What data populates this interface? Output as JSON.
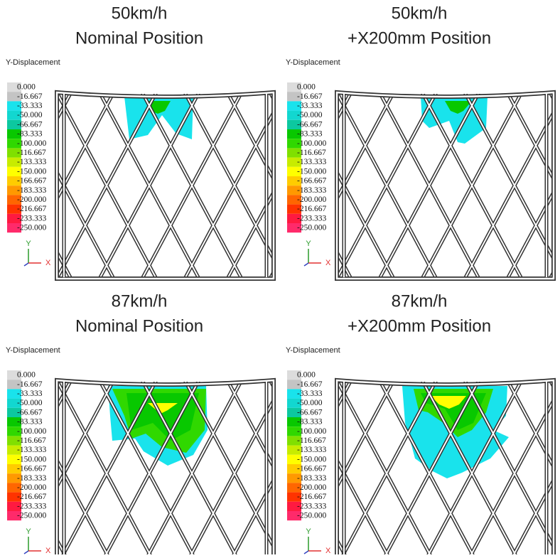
{
  "panels": [
    {
      "title": [
        "50km/h",
        "Nominal Position"
      ],
      "field_label": "Y-Displacement"
    },
    {
      "title": [
        "50km/h",
        "+X200mm Position"
      ],
      "field_label": "Y-Displacement"
    },
    {
      "title": [
        "87km/h",
        "Nominal Position"
      ],
      "field_label": "Y-Displacement"
    },
    {
      "title": [
        "87km/h",
        "+X200mm Position"
      ],
      "field_label": "Y-Displacement"
    }
  ],
  "legend": [
    {
      "label": "0.000",
      "color": "#dcdcdc"
    },
    {
      "label": "-16.667",
      "color": "#c4c4c4"
    },
    {
      "label": "-33.333",
      "color": "#19e3ec"
    },
    {
      "label": "-50.000",
      "color": "#12d7d0"
    },
    {
      "label": "-66.667",
      "color": "#0cc8a0"
    },
    {
      "label": "-83.333",
      "color": "#08c800"
    },
    {
      "label": "-100.000",
      "color": "#30d800"
    },
    {
      "label": "-116.667",
      "color": "#80e000"
    },
    {
      "label": "-133.333",
      "color": "#c8ec00"
    },
    {
      "label": "-150.000",
      "color": "#ffff00"
    },
    {
      "label": "-166.667",
      "color": "#ffcc00"
    },
    {
      "label": "-183.333",
      "color": "#ff9900"
    },
    {
      "label": "-200.000",
      "color": "#ff6600"
    },
    {
      "label": "-216.667",
      "color": "#ff3300"
    },
    {
      "label": "-233.333",
      "color": "#ff1a40"
    },
    {
      "label": "-250.000",
      "color": "#ff2a6a"
    }
  ],
  "axes": {
    "y": "Y",
    "x": "X"
  }
}
